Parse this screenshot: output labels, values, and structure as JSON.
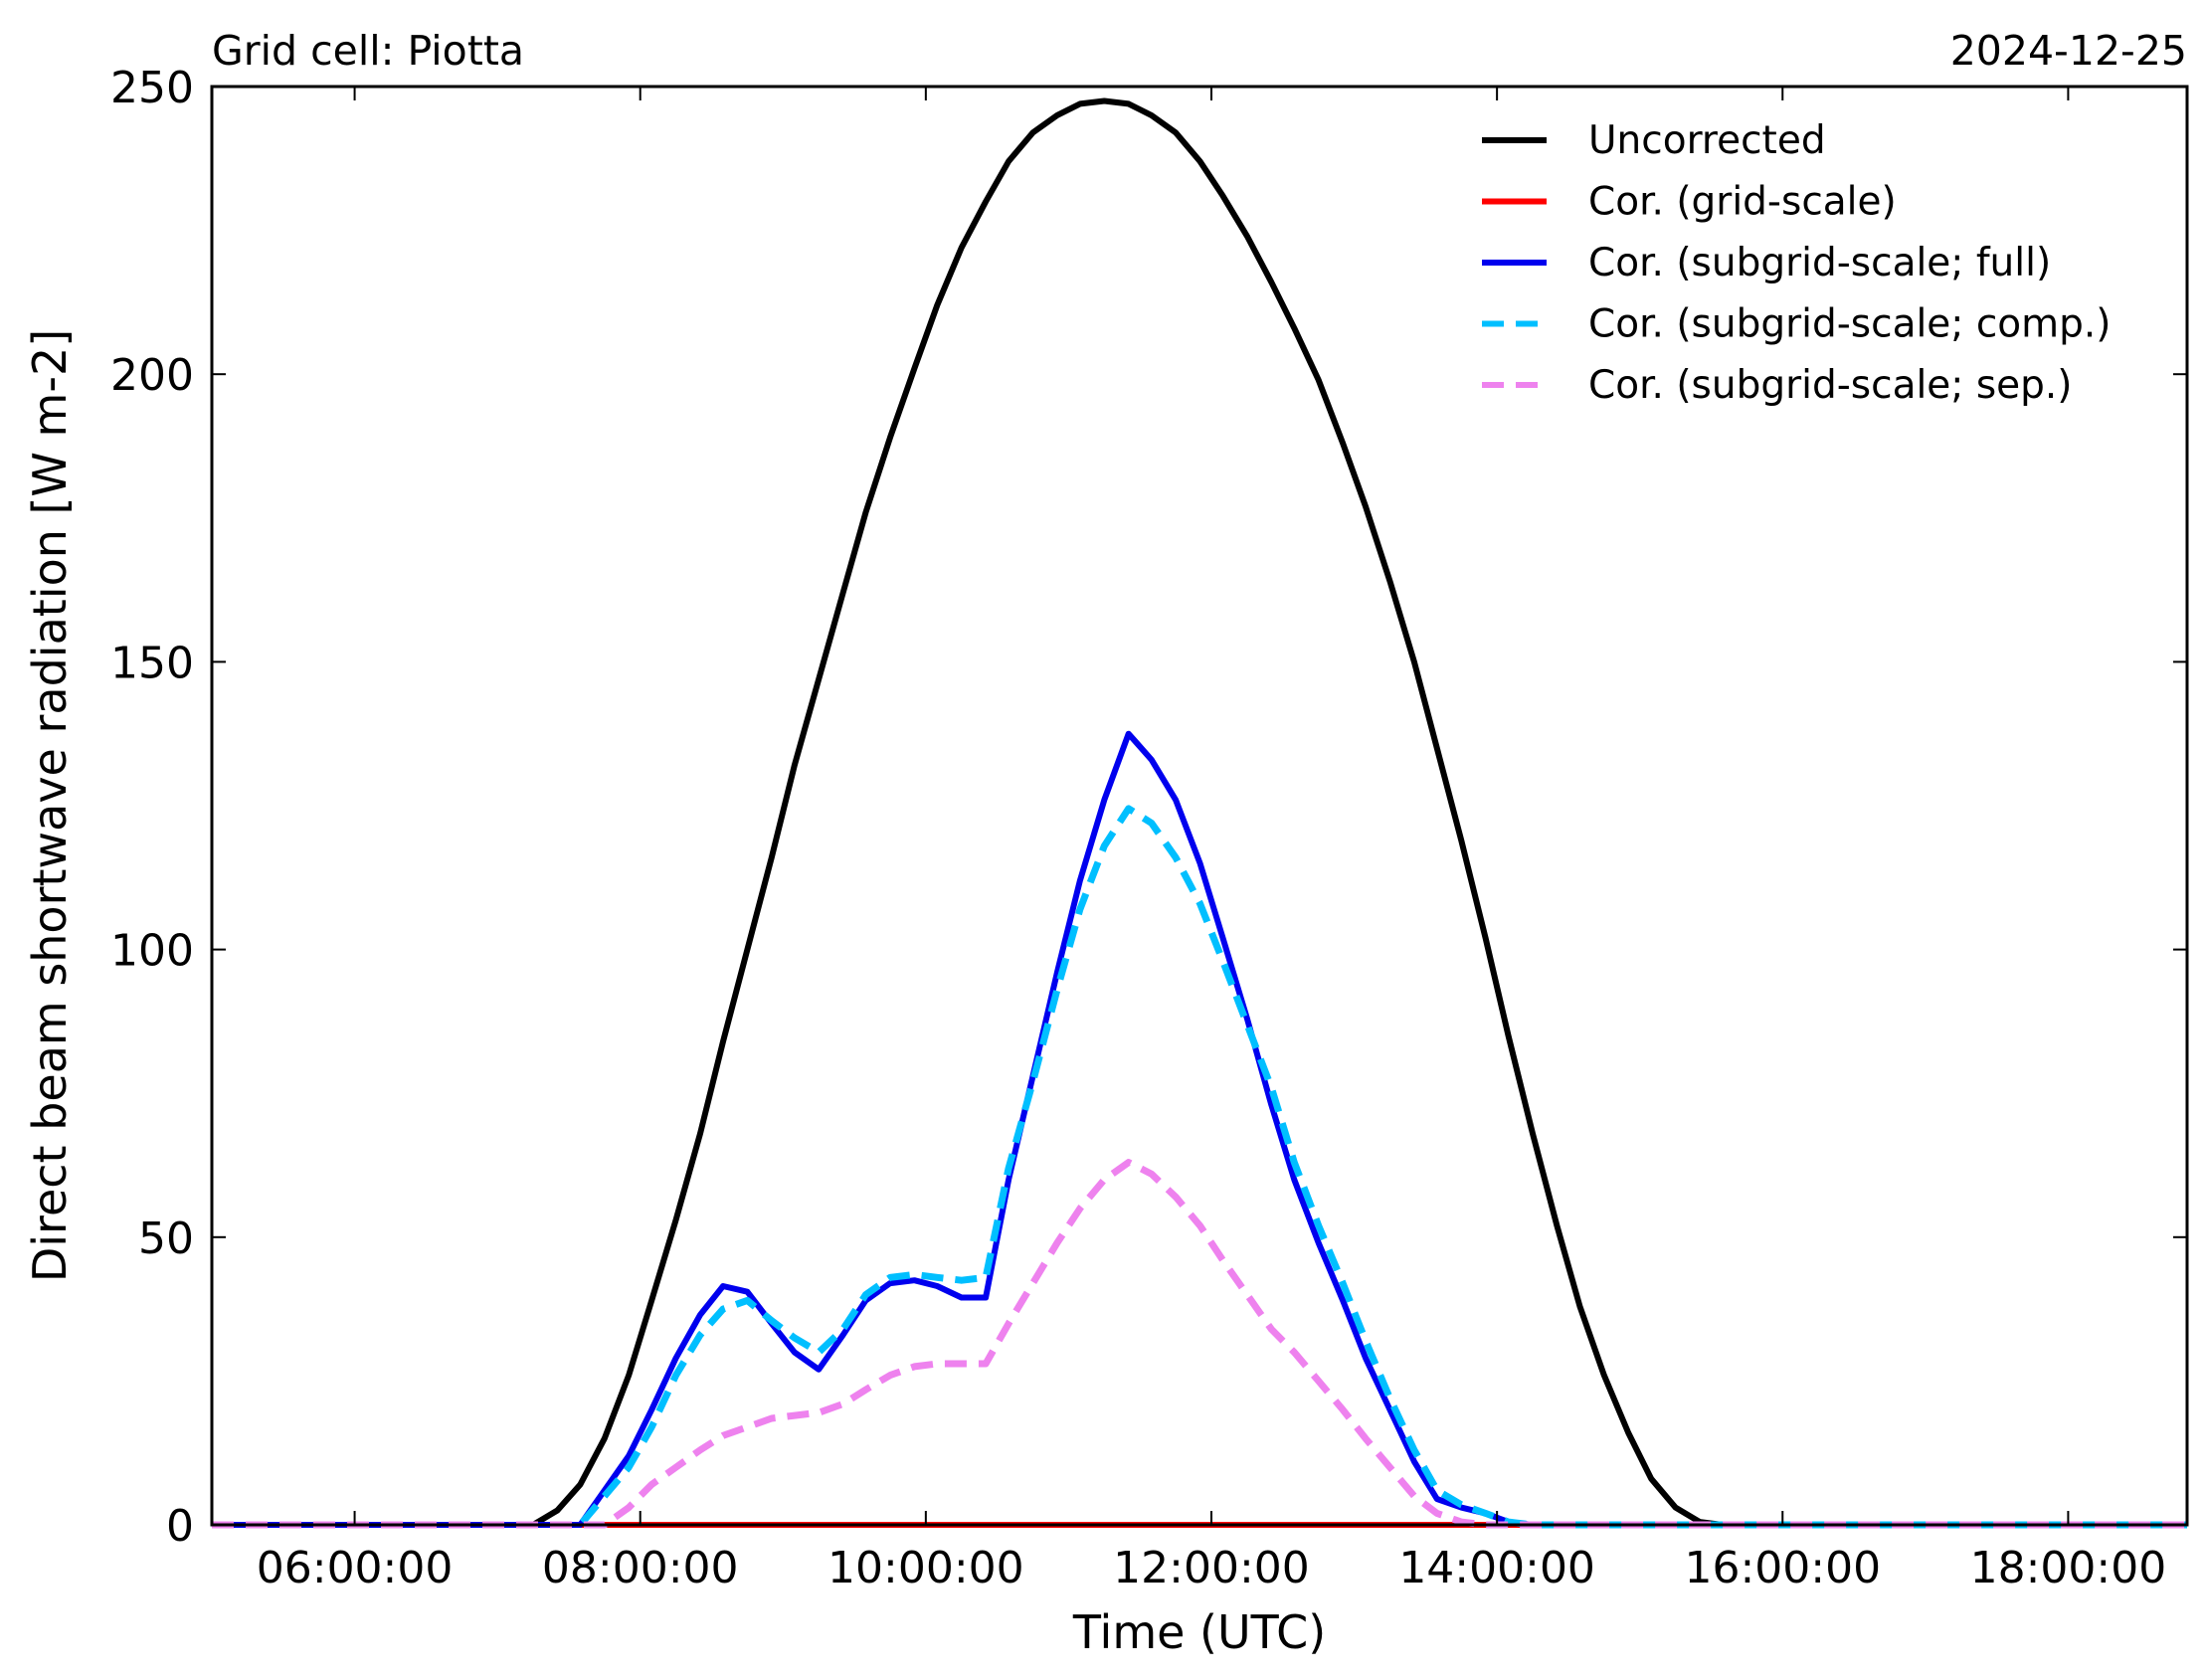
{
  "chart_data": {
    "type": "line",
    "title_left": "Grid cell: Piotta",
    "title_right": "2024-12-25",
    "xlabel": "Time (UTC)",
    "ylabel": "Direct beam shortwave radiation [W m-2]",
    "xlim_hours": [
      5.0,
      18.833
    ],
    "ylim": [
      0,
      250
    ],
    "x_ticks": [
      {
        "value": 6,
        "label": "06:00:00"
      },
      {
        "value": 8,
        "label": "08:00:00"
      },
      {
        "value": 10,
        "label": "10:00:00"
      },
      {
        "value": 12,
        "label": "12:00:00"
      },
      {
        "value": 14,
        "label": "14:00:00"
      },
      {
        "value": 16,
        "label": "16:00:00"
      },
      {
        "value": 18,
        "label": "18:00:00"
      }
    ],
    "y_ticks": [
      {
        "value": 0,
        "label": "0"
      },
      {
        "value": 50,
        "label": "50"
      },
      {
        "value": 100,
        "label": "100"
      },
      {
        "value": 150,
        "label": "150"
      },
      {
        "value": 200,
        "label": "200"
      },
      {
        "value": 250,
        "label": "250"
      }
    ],
    "grid": false,
    "legend_position": "top-right",
    "series": [
      {
        "name": "Uncorrected",
        "color": "#000000",
        "style": "solid",
        "points": [
          [
            5.0,
            0
          ],
          [
            7.25,
            0
          ],
          [
            7.42,
            2.5
          ],
          [
            7.58,
            7
          ],
          [
            7.75,
            15
          ],
          [
            7.92,
            26
          ],
          [
            8.08,
            39
          ],
          [
            8.25,
            53
          ],
          [
            8.42,
            68
          ],
          [
            8.58,
            84
          ],
          [
            8.75,
            100
          ],
          [
            8.92,
            116
          ],
          [
            9.08,
            132
          ],
          [
            9.25,
            147
          ],
          [
            9.42,
            162
          ],
          [
            9.58,
            176
          ],
          [
            9.75,
            189
          ],
          [
            9.92,
            201
          ],
          [
            10.08,
            212
          ],
          [
            10.25,
            222
          ],
          [
            10.42,
            230
          ],
          [
            10.58,
            237
          ],
          [
            10.75,
            242
          ],
          [
            10.92,
            245
          ],
          [
            11.08,
            247
          ],
          [
            11.25,
            247.5
          ],
          [
            11.42,
            247
          ],
          [
            11.58,
            245
          ],
          [
            11.75,
            242
          ],
          [
            11.92,
            237
          ],
          [
            12.08,
            231
          ],
          [
            12.25,
            224
          ],
          [
            12.42,
            216
          ],
          [
            12.58,
            208
          ],
          [
            12.75,
            199
          ],
          [
            12.92,
            188
          ],
          [
            13.08,
            177
          ],
          [
            13.25,
            164
          ],
          [
            13.42,
            150
          ],
          [
            13.58,
            135
          ],
          [
            13.75,
            119
          ],
          [
            13.92,
            102
          ],
          [
            14.08,
            85
          ],
          [
            14.25,
            68
          ],
          [
            14.42,
            52
          ],
          [
            14.58,
            38
          ],
          [
            14.75,
            26
          ],
          [
            14.92,
            16
          ],
          [
            15.08,
            8
          ],
          [
            15.25,
            3
          ],
          [
            15.42,
            0.5
          ],
          [
            15.58,
            0
          ],
          [
            18.833,
            0
          ]
        ]
      },
      {
        "name": "Cor. (grid-scale)",
        "color": "#ff0000",
        "style": "solid",
        "points": [
          [
            5.0,
            0
          ],
          [
            18.833,
            0
          ]
        ]
      },
      {
        "name": "Cor. (subgrid-scale; full)",
        "color": "#0000ee",
        "style": "solid",
        "points": [
          [
            5.0,
            0
          ],
          [
            7.58,
            0
          ],
          [
            7.75,
            6
          ],
          [
            7.92,
            12
          ],
          [
            8.08,
            20
          ],
          [
            8.25,
            29
          ],
          [
            8.42,
            36.5
          ],
          [
            8.58,
            41.5
          ],
          [
            8.75,
            40.5
          ],
          [
            8.92,
            35
          ],
          [
            9.08,
            30
          ],
          [
            9.25,
            27
          ],
          [
            9.42,
            33
          ],
          [
            9.58,
            39
          ],
          [
            9.75,
            42
          ],
          [
            9.92,
            42.5
          ],
          [
            10.08,
            41.5
          ],
          [
            10.25,
            39.5
          ],
          [
            10.42,
            39.5
          ],
          [
            10.58,
            60
          ],
          [
            10.75,
            78
          ],
          [
            10.92,
            96
          ],
          [
            11.08,
            112
          ],
          [
            11.25,
            126
          ],
          [
            11.42,
            137.5
          ],
          [
            11.58,
            133
          ],
          [
            11.75,
            126
          ],
          [
            11.92,
            115
          ],
          [
            12.08,
            102
          ],
          [
            12.25,
            88
          ],
          [
            12.42,
            73
          ],
          [
            12.58,
            60
          ],
          [
            12.75,
            49
          ],
          [
            12.92,
            39
          ],
          [
            13.08,
            29
          ],
          [
            13.25,
            20
          ],
          [
            13.42,
            11
          ],
          [
            13.58,
            4.5
          ],
          [
            13.75,
            3
          ],
          [
            13.92,
            2
          ],
          [
            14.08,
            0.5
          ],
          [
            14.25,
            0
          ],
          [
            18.833,
            0
          ]
        ]
      },
      {
        "name": "Cor. (subgrid-scale; comp.)",
        "color": "#00bfff",
        "style": "dashed",
        "points": [
          [
            5.0,
            0
          ],
          [
            7.58,
            0
          ],
          [
            7.75,
            5
          ],
          [
            7.92,
            10
          ],
          [
            8.08,
            17
          ],
          [
            8.25,
            26
          ],
          [
            8.42,
            33
          ],
          [
            8.58,
            37.5
          ],
          [
            8.75,
            39
          ],
          [
            8.92,
            35.5
          ],
          [
            9.08,
            32.5
          ],
          [
            9.25,
            30
          ],
          [
            9.42,
            34
          ],
          [
            9.58,
            40
          ],
          [
            9.75,
            43
          ],
          [
            9.92,
            43.5
          ],
          [
            10.08,
            43
          ],
          [
            10.25,
            42.5
          ],
          [
            10.42,
            43
          ],
          [
            10.58,
            62
          ],
          [
            10.75,
            77
          ],
          [
            10.92,
            93
          ],
          [
            11.08,
            107
          ],
          [
            11.25,
            118
          ],
          [
            11.42,
            124.5
          ],
          [
            11.58,
            122
          ],
          [
            11.75,
            116
          ],
          [
            11.92,
            108
          ],
          [
            12.08,
            98
          ],
          [
            12.25,
            87
          ],
          [
            12.42,
            76
          ],
          [
            12.58,
            63
          ],
          [
            12.75,
            52
          ],
          [
            12.92,
            42
          ],
          [
            13.08,
            32
          ],
          [
            13.25,
            22
          ],
          [
            13.42,
            13
          ],
          [
            13.58,
            6
          ],
          [
            13.75,
            3.5
          ],
          [
            13.92,
            2
          ],
          [
            14.08,
            0.5
          ],
          [
            14.25,
            0
          ],
          [
            18.833,
            0
          ]
        ]
      },
      {
        "name": "Cor. (subgrid-scale; sep.)",
        "color": "#ee82ee",
        "style": "dashed",
        "points": [
          [
            5.0,
            0
          ],
          [
            7.75,
            0
          ],
          [
            7.92,
            3
          ],
          [
            8.08,
            7
          ],
          [
            8.25,
            10
          ],
          [
            8.42,
            13
          ],
          [
            8.58,
            15.5
          ],
          [
            8.75,
            17
          ],
          [
            8.92,
            18.5
          ],
          [
            9.08,
            19
          ],
          [
            9.25,
            19.5
          ],
          [
            9.42,
            21
          ],
          [
            9.58,
            23.5
          ],
          [
            9.75,
            26
          ],
          [
            9.92,
            27.5
          ],
          [
            10.08,
            28
          ],
          [
            10.25,
            28
          ],
          [
            10.42,
            28
          ],
          [
            10.58,
            35
          ],
          [
            10.75,
            42
          ],
          [
            10.92,
            49
          ],
          [
            11.08,
            55
          ],
          [
            11.25,
            60
          ],
          [
            11.42,
            63
          ],
          [
            11.58,
            61
          ],
          [
            11.75,
            57
          ],
          [
            11.92,
            52
          ],
          [
            12.08,
            46
          ],
          [
            12.25,
            40
          ],
          [
            12.42,
            34
          ],
          [
            12.58,
            30
          ],
          [
            12.75,
            25
          ],
          [
            12.92,
            20
          ],
          [
            13.08,
            15
          ],
          [
            13.25,
            10
          ],
          [
            13.42,
            5
          ],
          [
            13.58,
            2
          ],
          [
            13.75,
            0.5
          ],
          [
            13.92,
            0
          ],
          [
            18.833,
            0
          ]
        ]
      }
    ]
  }
}
